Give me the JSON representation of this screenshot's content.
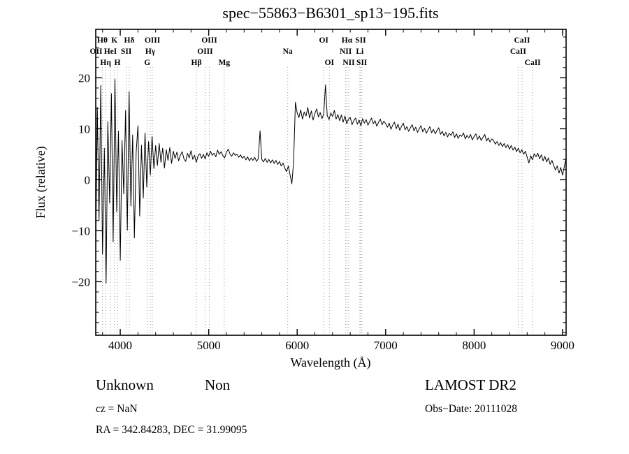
{
  "title": "spec−55863−B6301_sp13−195.fits",
  "axes": {
    "xlabel": "Wavelength (Å)",
    "ylabel": "Flux (relative)",
    "x_ticks": [
      4000,
      5000,
      6000,
      7000,
      8000,
      9000
    ],
    "y_ticks": [
      -20,
      -10,
      0,
      10,
      20
    ],
    "x_range": [
      3723,
      9040
    ],
    "y_range": [
      -30.5,
      29.5
    ],
    "x_minor_step": 200,
    "y_minor_step": 2
  },
  "footer": {
    "classification": "Unknown",
    "subclass": "Non",
    "cz": "cz = NaN",
    "coords": "RA = 342.84283, DEC = 31.99095",
    "survey": "LAMOST DR2",
    "obs_date": "Obs−Date: 20111028"
  },
  "chart_data": {
    "type": "line",
    "title": "spec−55863−B6301_sp13−195.fits",
    "xlabel": "Wavelength (Å)",
    "ylabel": "Flux (relative)",
    "xlim": [
      3723,
      9040
    ],
    "ylim": [
      -30.5,
      29.5
    ],
    "grid": false,
    "series": [
      {
        "name": "flux",
        "x_start": 3720,
        "x_step": 20,
        "values": [
          -19.5,
          14.2,
          -8.0,
          18.5,
          -14.6,
          6.2,
          -20.3,
          11.4,
          -4.6,
          16.9,
          -12.2,
          19.7,
          -6.3,
          9.5,
          -15.8,
          7.7,
          -2.8,
          13.6,
          -9.9,
          17.3,
          -5.2,
          8.8,
          -11.4,
          5.3,
          10.6,
          -7.1,
          6.8,
          -3.6,
          9.2,
          -1.4,
          7.5,
          0.9,
          8.5,
          2.2,
          6.7,
          2.8,
          7.1,
          3.4,
          6.2,
          2.3,
          5.9,
          3.8,
          6.3,
          3.2,
          5.6,
          4.2,
          5.4,
          3.7,
          4.8,
          5.5,
          4.1,
          3.6,
          5.2,
          4.3,
          5.7,
          4.0,
          4.8,
          3.4,
          4.7,
          5.1,
          4.2,
          5.0,
          4.1,
          5.3,
          4.6,
          5.6,
          4.8,
          5.2,
          4.5,
          5.8,
          5.0,
          5.5,
          4.7,
          4.3,
          5.4,
          6.0,
          5.1,
          4.6,
          5.3,
          4.8,
          5.0,
          4.4,
          4.9,
          4.2,
          4.6,
          3.9,
          4.5,
          3.7,
          4.3,
          3.8,
          4.4,
          3.6,
          4.1,
          9.6,
          4.0,
          3.5,
          4.2,
          3.4,
          4.0,
          3.3,
          3.9,
          3.2,
          3.8,
          3.0,
          3.6,
          2.7,
          3.3,
          2.3,
          1.6,
          2.7,
          0.9,
          -0.8,
          3.6,
          15.2,
          13.1,
          12.2,
          13.7,
          11.9,
          13.3,
          12.5,
          14.2,
          12.1,
          13.5,
          11.7,
          13.0,
          13.9,
          12.3,
          13.2,
          12.0,
          12.9,
          18.6,
          12.6,
          11.8,
          13.1,
          12.4,
          13.6,
          11.9,
          12.8,
          11.6,
          12.7,
          11.3,
          12.5,
          11.0,
          11.9,
          12.2,
          10.8,
          11.6,
          12.1,
          10.9,
          11.7,
          10.6,
          12.0,
          11.1,
          11.8,
          10.7,
          11.4,
          12.1,
          11.0,
          11.6,
          10.5,
          11.3,
          11.9,
          10.8,
          11.5,
          11.0,
          10.3,
          11.1,
          9.9,
          10.7,
          11.3,
          10.0,
          10.9,
          9.7,
          10.5,
          11.1,
          9.8,
          10.4,
          9.5,
          10.2,
          10.8,
          9.6,
          10.3,
          9.3,
          10.0,
          10.6,
          9.4,
          10.1,
          9.1,
          9.8,
          10.4,
          9.2,
          9.9,
          9.0,
          9.6,
          10.2,
          8.9,
          9.5,
          8.6,
          9.3,
          8.4,
          9.1,
          8.7,
          9.4,
          8.3,
          9.0,
          8.1,
          8.8,
          8.5,
          9.2,
          8.0,
          8.7,
          8.2,
          8.9,
          7.8,
          8.5,
          9.0,
          7.9,
          8.6,
          7.7,
          8.3,
          8.9,
          7.6,
          8.2,
          7.4,
          8.0,
          7.7,
          7.0,
          7.5,
          6.7,
          7.3,
          6.5,
          7.1,
          6.3,
          6.9,
          6.0,
          6.7,
          5.8,
          6.4,
          5.5,
          6.2,
          5.3,
          5.9,
          5.0,
          5.6,
          4.4,
          3.3,
          4.7,
          3.9,
          5.1,
          4.5,
          5.2,
          4.1,
          4.9,
          3.7,
          4.6,
          3.5,
          4.3,
          3.0,
          3.8,
          2.8,
          1.9,
          2.7,
          1.3,
          2.4,
          0.9,
          2.6,
          4.3
        ]
      }
    ],
    "spectral_lines": [
      {
        "label": "Hθ",
        "wavelength": 3798,
        "row": 1
      },
      {
        "label": "K",
        "wavelength": 3934,
        "row": 1
      },
      {
        "label": "Hδ",
        "wavelength": 4102,
        "row": 1
      },
      {
        "label": "OIII",
        "wavelength": 4363,
        "row": 1
      },
      {
        "label": "OIII",
        "wavelength": 5007,
        "row": 1
      },
      {
        "label": "OI",
        "wavelength": 6300,
        "row": 1
      },
      {
        "label": "Hα",
        "wavelength": 6563,
        "row": 1
      },
      {
        "label": "SII",
        "wavelength": 6717,
        "row": 1
      },
      {
        "label": "CaII",
        "wavelength": 8542,
        "row": 1
      },
      {
        "label": "OII",
        "wavelength": 3727,
        "row": 2
      },
      {
        "label": "HeI",
        "wavelength": 3889,
        "row": 2
      },
      {
        "label": "SII",
        "wavelength": 4068,
        "row": 2
      },
      {
        "label": "Hγ",
        "wavelength": 4340,
        "row": 2
      },
      {
        "label": "OIII",
        "wavelength": 4959,
        "row": 2
      },
      {
        "label": "Na",
        "wavelength": 5893,
        "row": 2
      },
      {
        "label": "NII",
        "wavelength": 6548,
        "row": 2
      },
      {
        "label": "Li",
        "wavelength": 6708,
        "row": 2
      },
      {
        "label": "CaII",
        "wavelength": 8498,
        "row": 2
      },
      {
        "label": "Hη",
        "wavelength": 3835,
        "row": 3
      },
      {
        "label": "H",
        "wavelength": 3968,
        "row": 3
      },
      {
        "label": "G",
        "wavelength": 4305,
        "row": 3
      },
      {
        "label": "Hβ",
        "wavelength": 4861,
        "row": 3
      },
      {
        "label": "Mg",
        "wavelength": 5175,
        "row": 3
      },
      {
        "label": "OI",
        "wavelength": 6364,
        "row": 3
      },
      {
        "label": "NII",
        "wavelength": 6583,
        "row": 3
      },
      {
        "label": "SII",
        "wavelength": 6731,
        "row": 3
      },
      {
        "label": "CaII",
        "wavelength": 8662,
        "row": 3
      }
    ],
    "colors": {
      "trace": "#000000",
      "marker_lines": "#9a9a9a",
      "axis": "#000000"
    }
  }
}
